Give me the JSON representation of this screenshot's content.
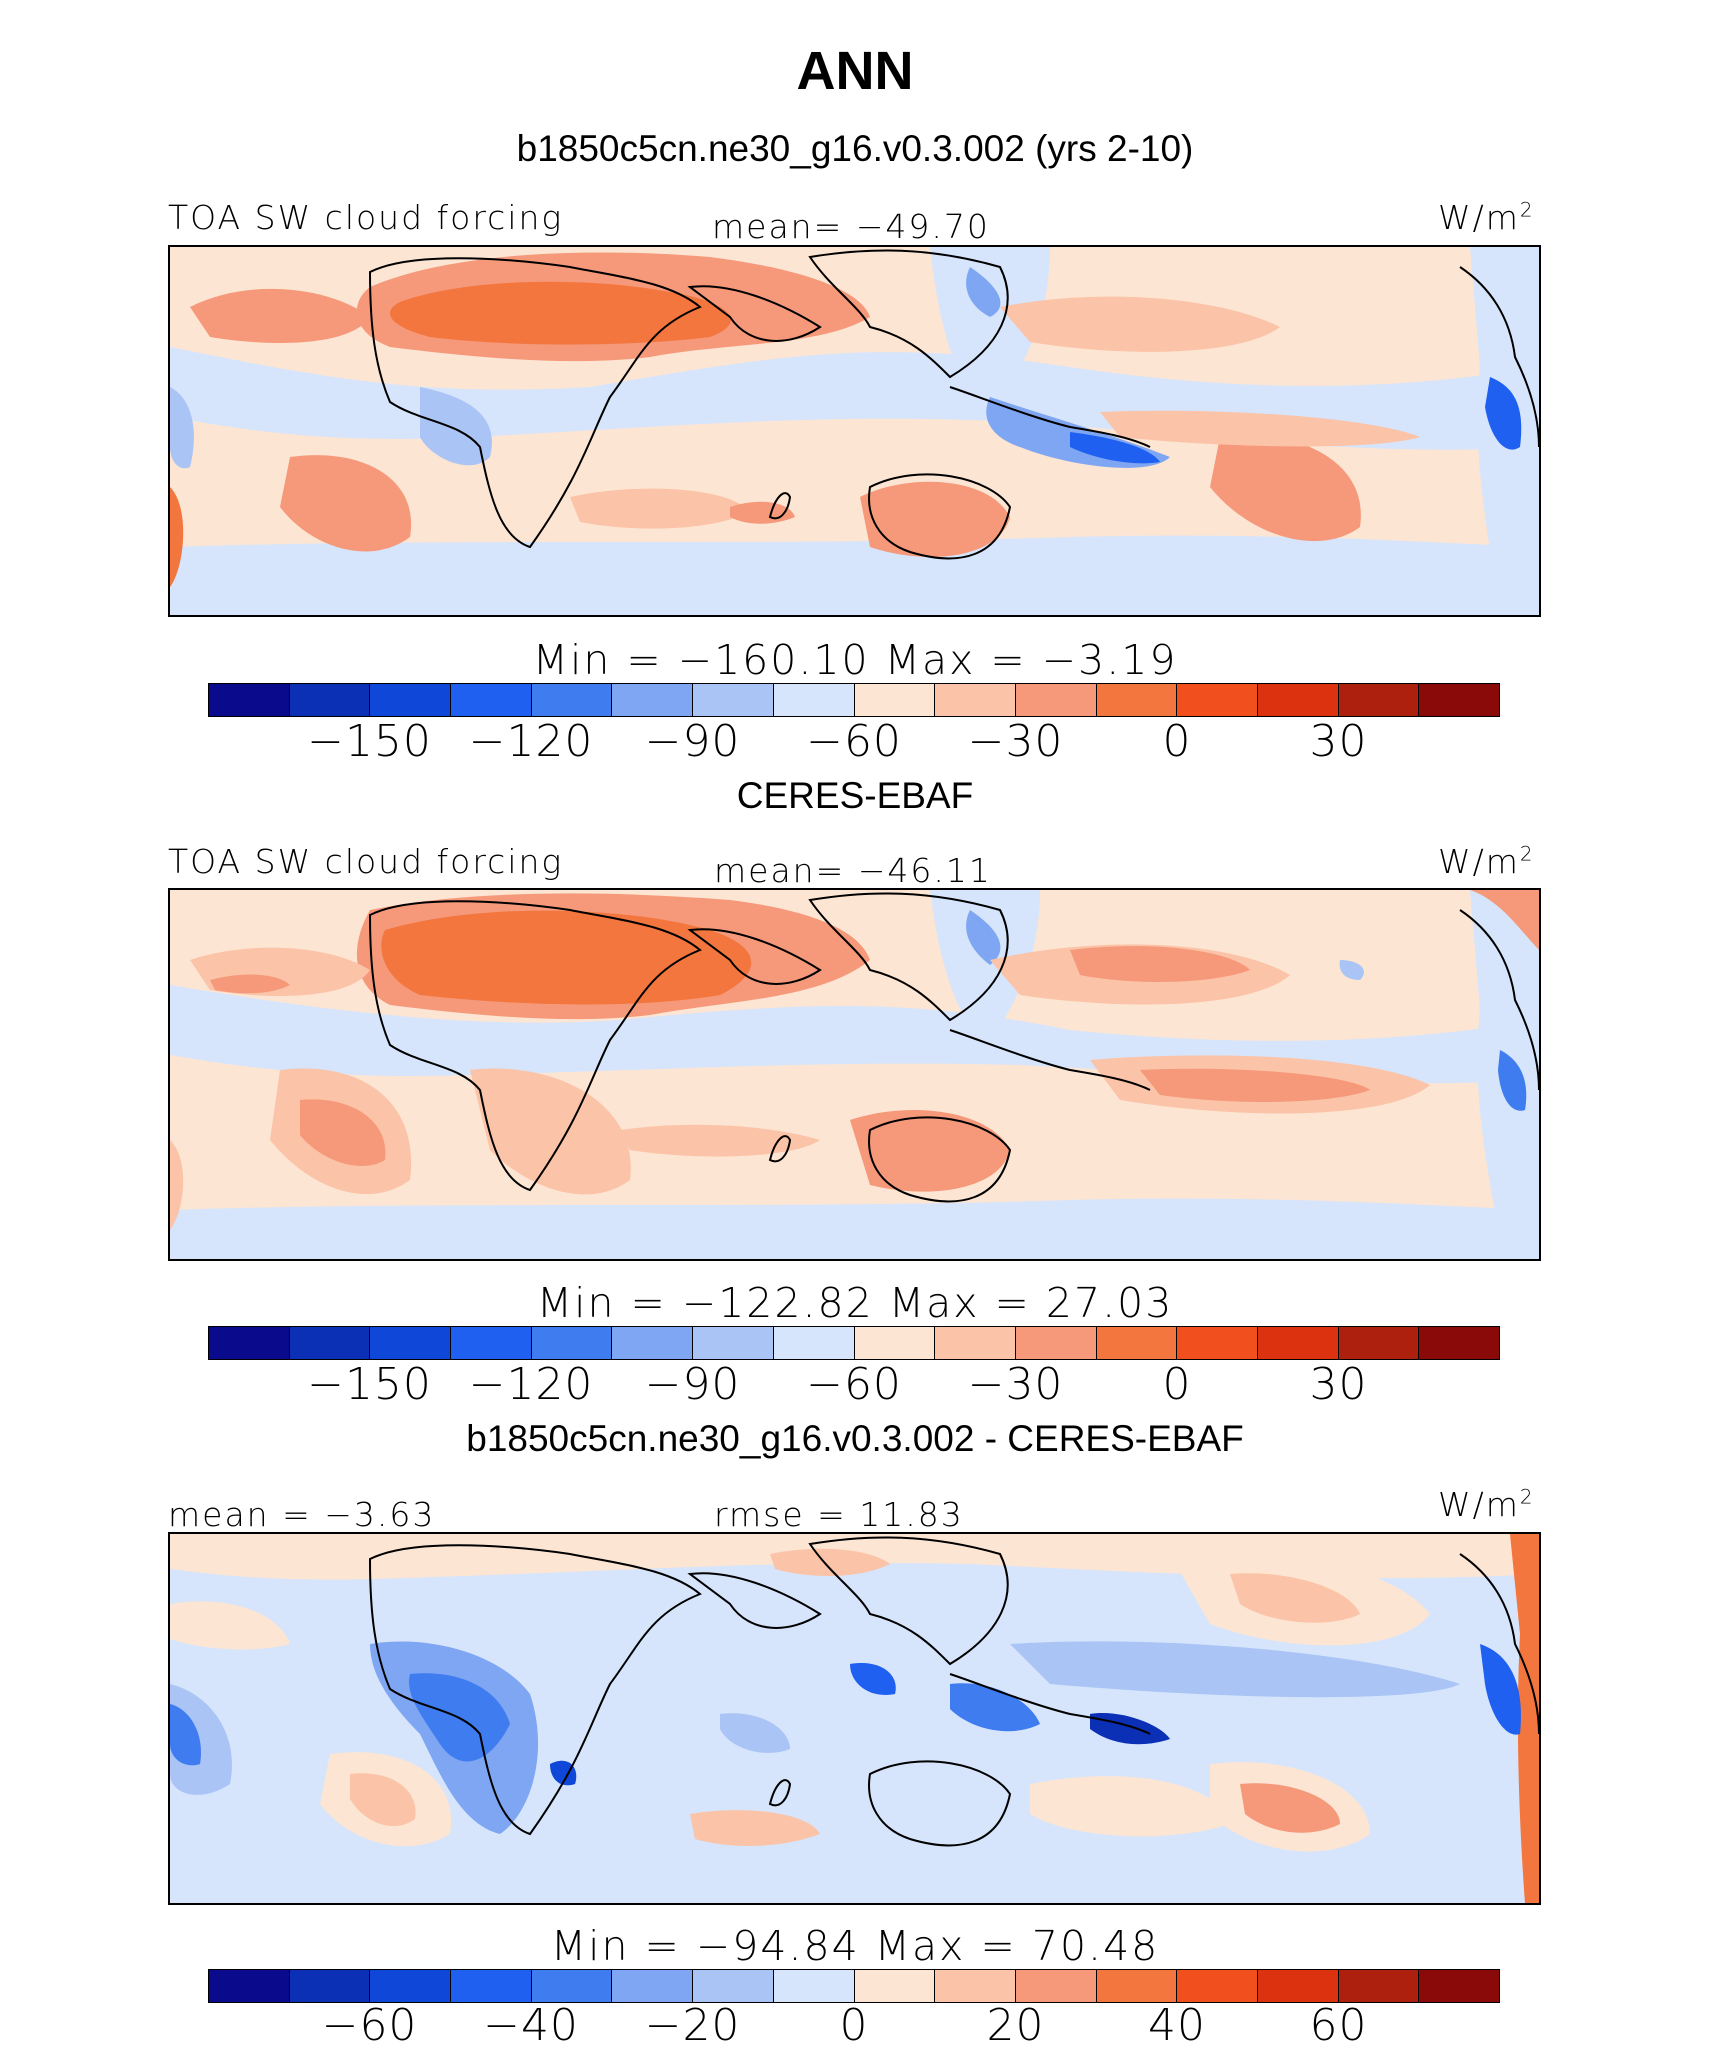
{
  "title": "ANN",
  "subtitle": "b1850c5cn.ne30_g16.v0.3.002 (yrs 2-10)",
  "colorbar_abs": {
    "colors": [
      "#0a0a8c",
      "#0b2fb5",
      "#0f48d8",
      "#1f60f0",
      "#3e7cf0",
      "#7fa6f2",
      "#a9c4f5",
      "#d6e5fb",
      "#fde5d3",
      "#fbc3a7",
      "#f5997a",
      "#f3763e",
      "#f1501e",
      "#dc3210",
      "#ae200e",
      "#8a0a0a"
    ],
    "tick_labels": [
      "−150",
      "−120",
      "−90",
      "−60",
      "−30",
      "0",
      "30"
    ]
  },
  "colorbar_diff": {
    "colors": [
      "#0a0a8c",
      "#0b2fb5",
      "#0f48d8",
      "#1f60f0",
      "#3e7cf0",
      "#7fa6f2",
      "#a9c4f5",
      "#d6e5fb",
      "#fde5d3",
      "#fbc3a7",
      "#f5997a",
      "#f3763e",
      "#f1501e",
      "#dc3210",
      "#ae200e",
      "#8a0a0a"
    ],
    "tick_labels": [
      "−60",
      "−40",
      "−20",
      "0",
      "20",
      "40",
      "60"
    ]
  },
  "panels": [
    {
      "left_label": "TOA SW cloud forcing",
      "center_label": "mean= −49.70",
      "unit_base": "W/m",
      "unit_exp": "2",
      "min_max": "Min  =  −160.10  Max  =   −3.19"
    },
    {
      "heading": "CERES-EBAF",
      "left_label": "TOA SW cloud forcing",
      "center_label": "mean= −46.11",
      "unit_base": "W/m",
      "unit_exp": "2",
      "min_max": "Min  =  −122.82  Max  =   27.03"
    },
    {
      "heading": "b1850c5cn.ne30_g16.v0.3.002 - CERES-EBAF",
      "left_label": "mean  =   −3.63",
      "center_label": "rmse  =   11.83",
      "unit_base": "W/m",
      "unit_exp": "2",
      "min_max": "Min  =  −94.84  Max  =   70.48"
    }
  ]
}
